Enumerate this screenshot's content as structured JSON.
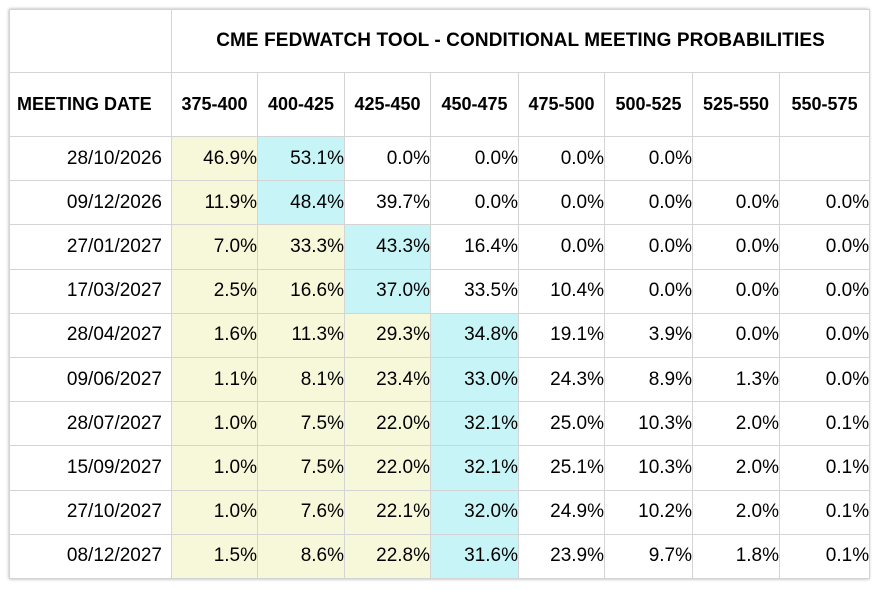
{
  "title": "CME FEDWATCH TOOL - CONDITIONAL MEETING PROBABILITIES",
  "date_header": "MEETING DATE",
  "columns": [
    "375-400",
    "400-425",
    "425-450",
    "450-475",
    "475-500",
    "500-525",
    "525-550",
    "550-575"
  ],
  "colors": {
    "yellow_fill": "#f7f7d9",
    "cyan_fill": "#c6f4f7",
    "border": "#d4d4d4"
  },
  "rows": [
    {
      "date": "28/10/2026",
      "values": [
        "46.9%",
        "53.1%",
        "0.0%",
        "0.0%",
        "0.0%",
        "0.0%",
        "",
        ""
      ],
      "fills": [
        "yellow",
        "cyan",
        "white",
        "white",
        "white",
        "white",
        "white",
        "white"
      ]
    },
    {
      "date": "09/12/2026",
      "values": [
        "11.9%",
        "48.4%",
        "39.7%",
        "0.0%",
        "0.0%",
        "0.0%",
        "0.0%",
        "0.0%"
      ],
      "fills": [
        "yellow",
        "cyan",
        "white",
        "white",
        "white",
        "white",
        "white",
        "white"
      ]
    },
    {
      "date": "27/01/2027",
      "values": [
        "7.0%",
        "33.3%",
        "43.3%",
        "16.4%",
        "0.0%",
        "0.0%",
        "0.0%",
        "0.0%"
      ],
      "fills": [
        "yellow",
        "yellow",
        "cyan",
        "white",
        "white",
        "white",
        "white",
        "white"
      ]
    },
    {
      "date": "17/03/2027",
      "values": [
        "2.5%",
        "16.6%",
        "37.0%",
        "33.5%",
        "10.4%",
        "0.0%",
        "0.0%",
        "0.0%"
      ],
      "fills": [
        "yellow",
        "yellow",
        "cyan",
        "white",
        "white",
        "white",
        "white",
        "white"
      ]
    },
    {
      "date": "28/04/2027",
      "values": [
        "1.6%",
        "11.3%",
        "29.3%",
        "34.8%",
        "19.1%",
        "3.9%",
        "0.0%",
        "0.0%"
      ],
      "fills": [
        "yellow",
        "yellow",
        "yellow",
        "cyan",
        "white",
        "white",
        "white",
        "white"
      ]
    },
    {
      "date": "09/06/2027",
      "values": [
        "1.1%",
        "8.1%",
        "23.4%",
        "33.0%",
        "24.3%",
        "8.9%",
        "1.3%",
        "0.0%"
      ],
      "fills": [
        "yellow",
        "yellow",
        "yellow",
        "cyan",
        "white",
        "white",
        "white",
        "white"
      ]
    },
    {
      "date": "28/07/2027",
      "values": [
        "1.0%",
        "7.5%",
        "22.0%",
        "32.1%",
        "25.0%",
        "10.3%",
        "2.0%",
        "0.1%"
      ],
      "fills": [
        "yellow",
        "yellow",
        "yellow",
        "cyan",
        "white",
        "white",
        "white",
        "white"
      ]
    },
    {
      "date": "15/09/2027",
      "values": [
        "1.0%",
        "7.5%",
        "22.0%",
        "32.1%",
        "25.1%",
        "10.3%",
        "2.0%",
        "0.1%"
      ],
      "fills": [
        "yellow",
        "yellow",
        "yellow",
        "cyan",
        "white",
        "white",
        "white",
        "white"
      ]
    },
    {
      "date": "27/10/2027",
      "values": [
        "1.0%",
        "7.6%",
        "22.1%",
        "32.0%",
        "24.9%",
        "10.2%",
        "2.0%",
        "0.1%"
      ],
      "fills": [
        "yellow",
        "yellow",
        "yellow",
        "cyan",
        "white",
        "white",
        "white",
        "white"
      ]
    },
    {
      "date": "08/12/2027",
      "values": [
        "1.5%",
        "8.6%",
        "22.8%",
        "31.6%",
        "23.9%",
        "9.7%",
        "1.8%",
        "0.1%"
      ],
      "fills": [
        "yellow",
        "yellow",
        "yellow",
        "cyan",
        "white",
        "white",
        "white",
        "white"
      ]
    }
  ]
}
